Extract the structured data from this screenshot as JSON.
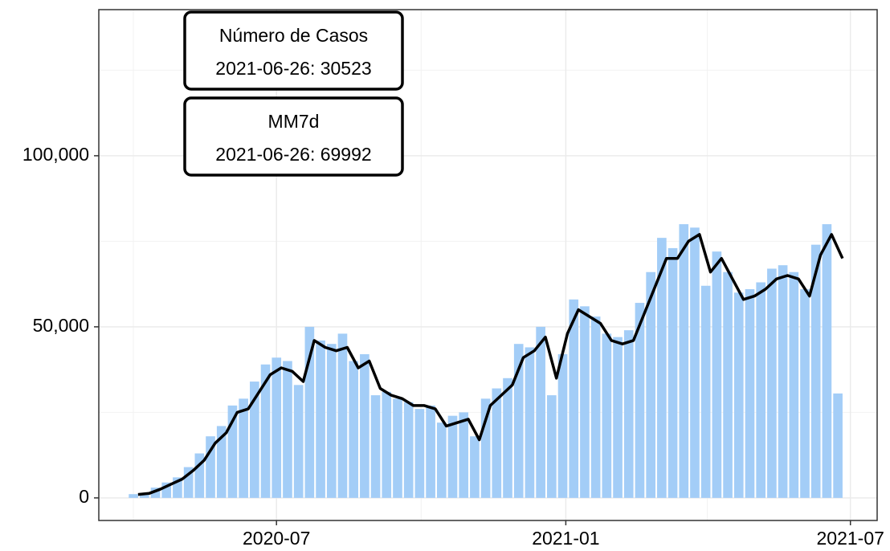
{
  "chart_data": {
    "type": "bar_line",
    "x": [
      "2020-04-04",
      "2020-04-11",
      "2020-04-18",
      "2020-04-25",
      "2020-05-02",
      "2020-05-09",
      "2020-05-16",
      "2020-05-23",
      "2020-05-30",
      "2020-06-06",
      "2020-06-13",
      "2020-06-20",
      "2020-06-27",
      "2020-07-04",
      "2020-07-11",
      "2020-07-18",
      "2020-07-25",
      "2020-08-01",
      "2020-08-08",
      "2020-08-15",
      "2020-08-22",
      "2020-08-29",
      "2020-09-05",
      "2020-09-12",
      "2020-09-19",
      "2020-09-26",
      "2020-10-03",
      "2020-10-10",
      "2020-10-17",
      "2020-10-24",
      "2020-10-31",
      "2020-11-07",
      "2020-11-14",
      "2020-11-21",
      "2020-11-28",
      "2020-12-05",
      "2020-12-12",
      "2020-12-19",
      "2020-12-26",
      "2021-01-02",
      "2021-01-09",
      "2021-01-16",
      "2021-01-23",
      "2021-01-30",
      "2021-02-06",
      "2021-02-13",
      "2021-02-20",
      "2021-02-27",
      "2021-03-06",
      "2021-03-13",
      "2021-03-20",
      "2021-03-27",
      "2021-04-03",
      "2021-04-10",
      "2021-04-17",
      "2021-04-24",
      "2021-05-01",
      "2021-05-08",
      "2021-05-15",
      "2021-05-22",
      "2021-05-29",
      "2021-06-05",
      "2021-06-12",
      "2021-06-19",
      "2021-06-26"
    ],
    "series": [
      {
        "name": "Número de Casos",
        "kind": "bar",
        "color": "#a3cdf7",
        "values": [
          1100,
          1500,
          3000,
          4500,
          6000,
          9000,
          13000,
          18000,
          21000,
          27000,
          29000,
          34000,
          39000,
          41000,
          40000,
          33000,
          50000,
          46000,
          45000,
          48000,
          40000,
          42000,
          30000,
          31000,
          29000,
          28000,
          26000,
          27000,
          22000,
          24000,
          25000,
          18000,
          29000,
          32000,
          35000,
          45000,
          44000,
          50000,
          30000,
          42000,
          58000,
          56000,
          53000,
          48000,
          47000,
          49000,
          57000,
          66000,
          76000,
          73000,
          80000,
          79000,
          62000,
          72000,
          66000,
          60000,
          61000,
          63000,
          67000,
          68000,
          66000,
          61000,
          74000,
          80000,
          30523
        ]
      },
      {
        "name": "MM7d",
        "kind": "line",
        "color": "#000000",
        "values": [
          1000,
          1300,
          2500,
          4000,
          5500,
          8000,
          11000,
          16000,
          19000,
          25000,
          26000,
          31000,
          36000,
          38000,
          37000,
          34000,
          46000,
          44000,
          43000,
          44000,
          38000,
          40000,
          32000,
          30000,
          29000,
          27000,
          27000,
          26000,
          21000,
          22000,
          23000,
          17000,
          27000,
          30000,
          33000,
          41000,
          43000,
          47000,
          35000,
          48000,
          55000,
          53000,
          51000,
          46000,
          45000,
          46000,
          54000,
          62000,
          70000,
          70000,
          75000,
          77000,
          66000,
          70000,
          64000,
          58000,
          59000,
          61000,
          64000,
          65000,
          64000,
          59000,
          71000,
          77000,
          69992
        ]
      }
    ],
    "annotations": [
      {
        "title": "Número de Casos",
        "text": "2021-06-26: 30523"
      },
      {
        "title": "MM7d",
        "text": "2021-06-26: 69992"
      }
    ],
    "xlim": [
      "2020-03-10",
      "2021-07-18"
    ],
    "xticks": [
      {
        "value": "2020-07-01",
        "label": "2020-07"
      },
      {
        "value": "2021-01-01",
        "label": "2021-01"
      },
      {
        "value": "2021-07-01",
        "label": "2021-07"
      }
    ],
    "minor_xticks": [
      "2020-04-01",
      "2020-10-01",
      "2021-04-01"
    ],
    "ylim": [
      -6600,
      142700
    ],
    "yticks": [
      0,
      {
        "value": 50000,
        "label": "50,000"
      },
      {
        "value": 100000,
        "label": "100,000"
      }
    ],
    "minor_yticks": [
      25000,
      75000,
      125000
    ],
    "grid": true
  }
}
